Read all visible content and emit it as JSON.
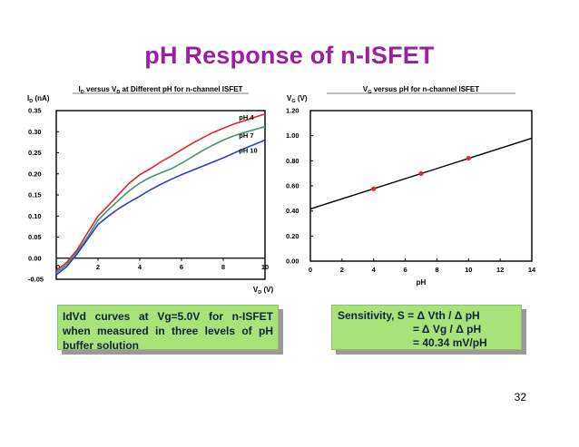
{
  "slide": {
    "title": "pH Response of n-ISFET",
    "page_number": "32"
  },
  "caption_left": {
    "text": "IdVd curves at Vg=5.0V for n-ISFET when measured in three levels of pH buffer solution"
  },
  "caption_right": {
    "line1": "Sensitivity, S = Δ Vth / Δ pH",
    "line2": "= Δ Vg / Δ pH",
    "line3": "= 40.34 mV/pH"
  },
  "chart_data": [
    {
      "type": "line",
      "title": "ID versus VD at Different pH for n-channel ISFET",
      "title_parts": {
        "a": "I",
        "a_sub": "D",
        "b": " versus V",
        "b_sub": "D",
        "c": " at Different pH for n-channel ISFET"
      },
      "ylabel": {
        "main": "I",
        "sub": "D",
        "unit": " (nA)"
      },
      "xlabel": {
        "main": "V",
        "sub": "D",
        "unit": " (V)"
      },
      "xlim": [
        0,
        10
      ],
      "ylim": [
        -0.05,
        0.35
      ],
      "xticks": [
        0,
        2,
        4,
        6,
        8,
        10
      ],
      "xtick_labels": [
        "0",
        "2",
        "4",
        "6",
        "8",
        "10"
      ],
      "yticks": [
        -0.05,
        0.0,
        0.05,
        0.1,
        0.15,
        0.2,
        0.25,
        0.3,
        0.35
      ],
      "ytick_labels": [
        "-0.05",
        "0.00",
        "0.05",
        "0.10",
        "0.15",
        "0.20",
        "0.25",
        "0.30",
        "0.35"
      ],
      "grid": false,
      "series": [
        {
          "name": "pH 4",
          "color": "#e8242b",
          "x": [
            0,
            0.5,
            1,
            1.5,
            2,
            2.5,
            3,
            3.5,
            4,
            4.5,
            5,
            5.5,
            6,
            6.5,
            7,
            7.5,
            8,
            8.5,
            9,
            9.5,
            10
          ],
          "y": [
            -0.03,
            -0.01,
            0.02,
            0.06,
            0.1,
            0.125,
            0.152,
            0.178,
            0.198,
            0.212,
            0.228,
            0.242,
            0.257,
            0.272,
            0.285,
            0.298,
            0.308,
            0.318,
            0.326,
            0.334,
            0.342
          ]
        },
        {
          "name": "pH 7",
          "color": "#3a9a6a",
          "x": [
            0,
            0.5,
            1,
            1.5,
            2,
            2.5,
            3,
            3.5,
            4,
            4.5,
            5,
            5.5,
            6,
            6.5,
            7,
            7.5,
            8,
            8.5,
            9,
            9.5,
            10
          ],
          "y": [
            -0.035,
            -0.015,
            0.015,
            0.05,
            0.09,
            0.115,
            0.138,
            0.16,
            0.178,
            0.192,
            0.202,
            0.212,
            0.225,
            0.24,
            0.255,
            0.268,
            0.28,
            0.29,
            0.298,
            0.305,
            0.312
          ]
        },
        {
          "name": "pH 10",
          "color": "#2b3ed0",
          "x": [
            0,
            0.5,
            1,
            1.5,
            2,
            2.5,
            3,
            3.5,
            4,
            4.5,
            5,
            5.5,
            6,
            6.5,
            7,
            7.5,
            8,
            8.5,
            9,
            9.5,
            10
          ],
          "y": [
            -0.04,
            -0.02,
            0.01,
            0.045,
            0.08,
            0.1,
            0.118,
            0.133,
            0.147,
            0.162,
            0.175,
            0.187,
            0.198,
            0.208,
            0.218,
            0.228,
            0.238,
            0.249,
            0.26,
            0.27,
            0.28
          ]
        }
      ],
      "annotations": [
        "pH 4",
        "pH 7",
        "pH 10"
      ]
    },
    {
      "type": "scatter",
      "title": "VG versus pH for n-channel ISFET",
      "title_parts": {
        "a": "V",
        "a_sub": "G",
        "b": " versus pH for n-channel ISFET"
      },
      "ylabel": {
        "main": "V",
        "sub": "G",
        "unit": " (V)"
      },
      "xlabel": {
        "main": "pH"
      },
      "xlim": [
        0,
        14
      ],
      "ylim": [
        0,
        1.2
      ],
      "xticks": [
        0,
        2,
        4,
        6,
        8,
        10,
        12,
        14
      ],
      "xtick_labels": [
        "0",
        "2",
        "4",
        "6",
        "8",
        "10",
        "12",
        "14"
      ],
      "yticks": [
        0,
        0.2,
        0.4,
        0.6,
        0.8,
        1.0,
        1.2
      ],
      "ytick_labels": [
        "0.00",
        "0.20",
        "0.40",
        "0.60",
        "0.80",
        "1.00",
        "1.20"
      ],
      "grid": false,
      "points": {
        "color": "#e8242b",
        "x": [
          4,
          7,
          10
        ],
        "y": [
          0.577,
          0.698,
          0.82
        ]
      },
      "fit_line": {
        "color": "#000000",
        "x": [
          0,
          14
        ],
        "y": [
          0.416,
          0.98
        ]
      }
    }
  ]
}
